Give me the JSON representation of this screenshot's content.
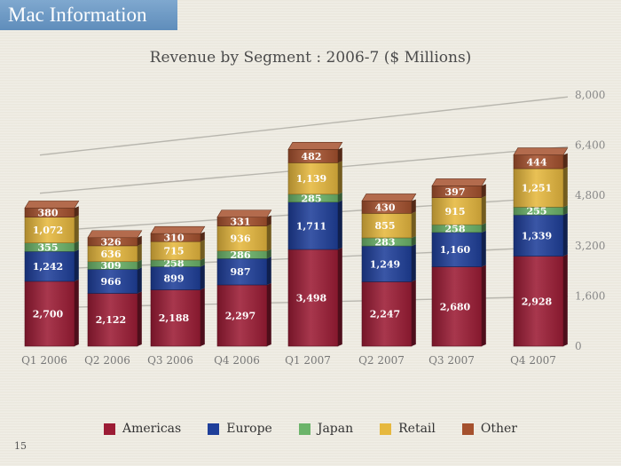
{
  "slide": {
    "header": "Mac Information",
    "page_number": "15"
  },
  "chart_data": {
    "type": "bar",
    "stacked": true,
    "title": "Revenue by Segment : 2006-7 ($ Millions)",
    "xlabel": "",
    "ylabel": "",
    "ylim": [
      0,
      8000
    ],
    "yticks": [
      "0",
      "1,600",
      "3,200",
      "4,800",
      "6,400",
      "8,000"
    ],
    "ytick_values": [
      0,
      1600,
      3200,
      4800,
      6400,
      8000
    ],
    "grid": true,
    "legend_position": "bottom",
    "categories": [
      "Q1 2006",
      "Q2 2006",
      "Q3 2006",
      "Q4 2006",
      "Q1 2007",
      "Q2 2007",
      "Q3 2007",
      "Q4 2007"
    ],
    "series": [
      {
        "name": "Americas",
        "color": "#9c1c35",
        "values": [
          2700,
          2122,
          2188,
          2297,
          3498,
          2247,
          2680,
          2928
        ],
        "labels": [
          "2,700",
          "2,122",
          "2,188",
          "2,297",
          "3,498",
          "2,247",
          "2,680",
          "2,928"
        ]
      },
      {
        "name": "Europe",
        "color": "#1f3f9a",
        "values": [
          1242,
          966,
          899,
          987,
          1711,
          1249,
          1160,
          1339
        ],
        "labels": [
          "1,242",
          "966",
          "899",
          "987",
          "1,711",
          "1,249",
          "1,160",
          "1,339"
        ]
      },
      {
        "name": "Japan",
        "color": "#6cb46a",
        "values": [
          355,
          309,
          258,
          286,
          285,
          283,
          258,
          255
        ],
        "labels": [
          "355",
          "309",
          "258",
          "286",
          "285",
          "283",
          "258",
          "255"
        ]
      },
      {
        "name": "Retail",
        "color": "#e6b83e",
        "values": [
          1072,
          636,
          715,
          936,
          1139,
          855,
          915,
          1251
        ],
        "labels": [
          "1,072",
          "636",
          "715",
          "936",
          "1,139",
          "855",
          "915",
          "1,251"
        ]
      },
      {
        "name": "Other",
        "color": "#a5512e",
        "values": [
          380,
          326,
          310,
          331,
          482,
          430,
          397,
          444
        ],
        "labels": [
          "380",
          "326",
          "310",
          "331",
          "482",
          "430",
          "397",
          "444"
        ]
      }
    ]
  }
}
